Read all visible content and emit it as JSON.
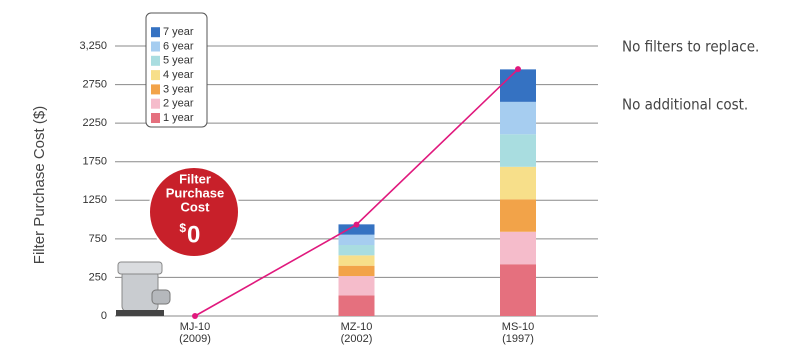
{
  "chart_data": {
    "type": "bar",
    "y_label": "Filter Purchase Cost ($)",
    "categories": [
      "MJ-10",
      "MZ-10",
      "MS-10"
    ],
    "category_years": [
      "(2009)",
      "(2002)",
      "(1997)"
    ],
    "ylim": [
      0,
      3250
    ],
    "yticks": [
      0,
      250,
      750,
      1250,
      1750,
      2250,
      2750,
      {
        "value": 3250,
        "label": "3,250"
      }
    ],
    "grid": true,
    "stacked": true,
    "series": [
      {
        "name": "1 year",
        "color": "#e5707e",
        "values": [
          0,
          134,
          421
        ]
      },
      {
        "name": "2 year",
        "color": "#f5bccb",
        "values": [
          0,
          134,
          421
        ]
      },
      {
        "name": "3 year",
        "color": "#f2a349",
        "values": [
          0,
          134,
          421
        ]
      },
      {
        "name": "4 year",
        "color": "#f7df8a",
        "values": [
          0,
          134,
          421
        ]
      },
      {
        "name": "5 year",
        "color": "#a9dde0",
        "values": [
          0,
          134,
          421
        ]
      },
      {
        "name": "6 year",
        "color": "#a6cdf0",
        "values": [
          0,
          134,
          421
        ]
      },
      {
        "name": "7 year",
        "color": "#3572c2",
        "values": [
          0,
          134,
          421
        ]
      }
    ],
    "line": {
      "color": "#e0197d",
      "values": [
        0,
        935,
        2950
      ]
    },
    "badge": {
      "lines": [
        "Filter",
        "Purchase",
        "Cost"
      ],
      "currency": "$",
      "amount": "0"
    },
    "notes": [
      "No filters to replace.",
      "No additional cost."
    ]
  }
}
